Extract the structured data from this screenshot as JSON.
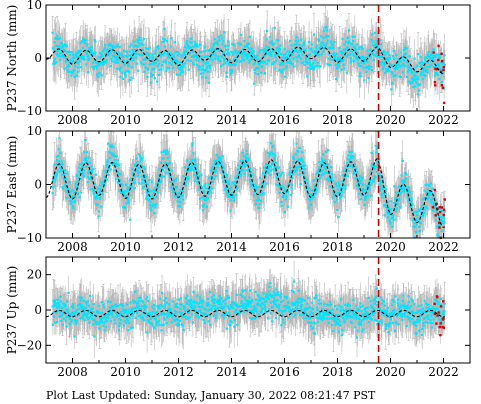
{
  "chart_data": [
    {
      "type": "scatter",
      "ylabel": "P237 North (mm)",
      "ylim": [
        -10,
        10
      ],
      "yticks": [
        "10",
        "0",
        "−10"
      ],
      "ytick_values": [
        10,
        0,
        -10
      ],
      "xlim": [
        2007.0,
        2023.0
      ],
      "xticks": [
        "2008",
        "2010",
        "2012",
        "2014",
        "2016",
        "2018",
        "2020",
        "2022"
      ],
      "xtick_values": [
        2008,
        2010,
        2012,
        2014,
        2016,
        2018,
        2020,
        2022
      ],
      "series": [
        {
          "values": {
            "x": [
              2007.5,
              2008.5,
              2009.5,
              2010.5,
              2011.5,
              2012.5,
              2013.5,
              2014.5,
              2015.5,
              2016.5,
              2017.5,
              2018.5,
              2019.4
            ],
            "y": [
              0.5,
              0.3,
              0.0,
              0.4,
              0.2,
              0.1,
              0.6,
              0.3,
              0.2,
              0.5,
              1.0,
              0.7,
              0.5
            ]
          }
        },
        {
          "values": {
            "x": [
              2019.8,
              2020.5,
              2021.2,
              2021.8,
              2022.0
            ],
            "y": [
              -0.5,
              -1.5,
              -2.0,
              -1.0,
              -0.5
            ]
          }
        },
        {
          "values": {
            "x": [
              2007.0,
              2008.0,
              2009.0,
              2010.0,
              2011.0,
              2012.0,
              2013.0,
              2014.0,
              2015.0,
              2016.0,
              2017.0,
              2018.0,
              2019.0,
              2019.5,
              2020.0,
              2021.0,
              2022.0
            ],
            "y": [
              1.0,
              0.0,
              0.5,
              0.2,
              0.6,
              -0.2,
              0.8,
              0.3,
              0.5,
              0.6,
              1.1,
              0.4,
              0.6,
              0.9,
              -0.6,
              -1.4,
              -1.8
            ]
          }
        }
      ],
      "amplitude": 1.2,
      "spread": 2.2,
      "error": 3.0,
      "event": 2019.55
    },
    {
      "type": "scatter",
      "ylabel": "P237 East (mm)",
      "ylim": [
        -10,
        10
      ],
      "yticks": [
        "10",
        "0",
        "−10"
      ],
      "ytick_values": [
        10,
        0,
        -10
      ],
      "xlim": [
        2007.0,
        2023.0
      ],
      "xticks": [
        "2008",
        "2010",
        "2012",
        "2014",
        "2016",
        "2018",
        "2020",
        "2022"
      ],
      "xtick_values": [
        2008,
        2010,
        2012,
        2014,
        2016,
        2018,
        2020,
        2022
      ],
      "series": [
        {
          "values": {
            "x": [
              2007.5,
              2008.5,
              2009.5,
              2010.5,
              2011.5,
              2012.5,
              2013.5,
              2014.5,
              2015.5,
              2016.5,
              2017.5,
              2018.5,
              2019.4
            ],
            "y": [
              0.5,
              0.8,
              2.0,
              0.0,
              0.8,
              0.5,
              1.5,
              1.0,
              1.5,
              1.8,
              1.0,
              0.8,
              1.5
            ]
          }
        },
        {
          "values": {
            "x": [
              2019.8,
              2020.5,
              2021.2,
              2021.8,
              2022.0
            ],
            "y": [
              -2.0,
              -3.5,
              -4.0,
              -5.5,
              -3.0
            ]
          }
        },
        {
          "values": {
            "x": [
              2007.0,
              2008.0,
              2009.0,
              2010.0,
              2011.0,
              2012.0,
              2013.0,
              2014.0,
              2015.0,
              2016.0,
              2017.0,
              2018.0,
              2019.0,
              2019.5,
              2020.0,
              2021.0,
              2022.0
            ],
            "y": [
              0.8,
              0.5,
              1.2,
              0.6,
              0.5,
              0.8,
              1.0,
              1.2,
              1.3,
              1.5,
              0.8,
              0.9,
              1.2,
              1.6,
              -2.4,
              -3.9,
              -4.8
            ]
          }
        }
      ],
      "amplitude": 3.2,
      "spread": 2.0,
      "error": 3.0,
      "event": 2019.55
    },
    {
      "type": "scatter",
      "ylabel": "P237 Up (mm)",
      "ylim": [
        -30,
        30
      ],
      "yticks": [
        "20",
        "0",
        "−20"
      ],
      "ytick_values": [
        20,
        0,
        -20
      ],
      "xlim": [
        2007.0,
        2023.0
      ],
      "xticks": [
        "2008",
        "2010",
        "2012",
        "2014",
        "2016",
        "2018",
        "2020",
        "2022"
      ],
      "xtick_values": [
        2008,
        2010,
        2012,
        2014,
        2016,
        2018,
        2020,
        2022
      ],
      "series": [
        {
          "values": {
            "x": [
              2007.5,
              2008.5,
              2009.5,
              2010.5,
              2011.5,
              2012.5,
              2013.5,
              2014.5,
              2015.5,
              2016.5,
              2017.5,
              2018.5,
              2019.4
            ],
            "y": [
              -2.0,
              -1.5,
              -3.0,
              0.0,
              -2.0,
              0.0,
              1.0,
              2.0,
              4.0,
              2.0,
              -4.0,
              -3.0,
              -1.0
            ]
          }
        },
        {
          "values": {
            "x": [
              2019.8,
              2020.5,
              2021.2,
              2021.8,
              2022.0
            ],
            "y": [
              -1.0,
              -2.0,
              -3.0,
              -1.0,
              -2.0
            ]
          }
        },
        {
          "values": {
            "x": [
              2007.0,
              2008.0,
              2009.0,
              2010.0,
              2011.0,
              2012.0,
              2013.0,
              2014.0,
              2015.0,
              2016.0,
              2017.0,
              2018.0,
              2019.0,
              2019.5,
              2020.0,
              2021.0,
              2022.0
            ],
            "y": [
              -2.0,
              -2.0,
              -2.0,
              -2.0,
              -2.0,
              -2.0,
              -2.0,
              -2.0,
              -2.0,
              -2.0,
              -2.0,
              -2.0,
              -2.0,
              -2.0,
              -2.0,
              -2.0,
              -2.0
            ]
          }
        }
      ],
      "amplitude": 1.8,
      "spread": 6.0,
      "error": 9.0,
      "event": 2019.55
    }
  ],
  "footer": "Plot Last Updated:   Sunday, January 30, 2022 08:21:47 PST",
  "colors": {
    "points": "#00e5ff",
    "points_edge": "#00bcd4",
    "errorbars": "#b8b8b8",
    "model": "#000000",
    "outliers": "#e00000",
    "event_line": "#cc0000",
    "frame": "#000000"
  }
}
